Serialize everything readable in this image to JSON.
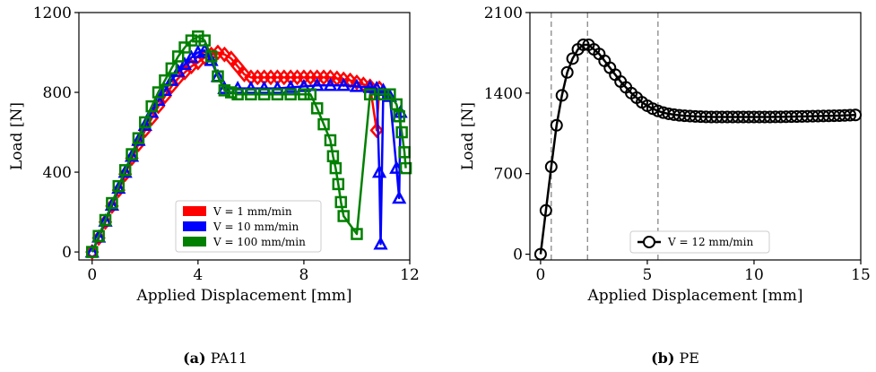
{
  "chart_data": [
    {
      "type": "line",
      "xlabel": "Applied Displacement  [mm]",
      "ylabel": "Load  [N]",
      "xlim": [
        -0.5,
        12
      ],
      "ylim": [
        -40,
        1200
      ],
      "xticks": [
        "0",
        "4",
        "8",
        "12"
      ],
      "yticks": [
        "0",
        "400",
        "800",
        "1200"
      ],
      "legend_position": "lower-right",
      "caption_label": "(a)",
      "caption_text": "PA11",
      "series": [
        {
          "name": "V = 1 mm/min",
          "color": "#ff0000",
          "marker": "diamond",
          "x": [
            0,
            0.25,
            0.5,
            0.75,
            1.0,
            1.25,
            1.5,
            1.75,
            2.0,
            2.25,
            2.5,
            2.75,
            3.0,
            3.25,
            3.5,
            3.75,
            4.0,
            4.25,
            4.5,
            4.75,
            5.0,
            5.25,
            5.5,
            5.75,
            6.0,
            6.25,
            6.5,
            6.75,
            7.0,
            7.25,
            7.5,
            7.75,
            8.0,
            8.25,
            8.5,
            8.75,
            9.0,
            9.25,
            9.5,
            9.75,
            10.0,
            10.25,
            10.5,
            10.75,
            10.85
          ],
          "y": [
            0,
            70,
            150,
            230,
            310,
            390,
            470,
            540,
            610,
            670,
            730,
            780,
            830,
            870,
            900,
            930,
            950,
            975,
            990,
            1000,
            990,
            970,
            930,
            890,
            875,
            875,
            875,
            875,
            875,
            875,
            875,
            875,
            875,
            875,
            875,
            875,
            875,
            870,
            865,
            860,
            850,
            840,
            830,
            610,
            820
          ]
        },
        {
          "name": "V = 10 mm/min",
          "color": "#0000ff",
          "marker": "triangle",
          "x": [
            0,
            0.25,
            0.5,
            0.75,
            1.0,
            1.25,
            1.5,
            1.75,
            2.0,
            2.25,
            2.5,
            2.75,
            3.0,
            3.25,
            3.5,
            3.75,
            4.0,
            4.25,
            4.5,
            4.75,
            5.0,
            5.5,
            6.0,
            6.5,
            7.0,
            7.5,
            8.0,
            8.5,
            9.0,
            9.5,
            10.0,
            10.5,
            10.75,
            10.85,
            10.9,
            11.0,
            11.25,
            11.5,
            11.6,
            11.65
          ],
          "y": [
            0,
            75,
            155,
            235,
            320,
            400,
            480,
            560,
            635,
            700,
            760,
            810,
            860,
            905,
            940,
            975,
            1000,
            1010,
            960,
            880,
            820,
            820,
            820,
            820,
            820,
            825,
            830,
            835,
            835,
            835,
            830,
            825,
            820,
            400,
            40,
            810,
            780,
            420,
            270,
            700
          ]
        },
        {
          "name": "V = 100 mm/min",
          "color": "#008000",
          "marker": "square",
          "x": [
            0,
            0.25,
            0.5,
            0.75,
            1.0,
            1.25,
            1.5,
            1.75,
            2.0,
            2.25,
            2.5,
            2.75,
            3.0,
            3.25,
            3.5,
            3.75,
            4.0,
            4.25,
            4.5,
            4.75,
            5.0,
            5.25,
            5.5,
            6.0,
            6.5,
            7.0,
            7.5,
            8.0,
            8.25,
            8.5,
            8.75,
            9.0,
            9.1,
            9.2,
            9.3,
            9.4,
            9.5,
            10.0,
            10.5,
            11.0,
            11.25,
            11.5,
            11.6,
            11.7,
            11.8,
            11.85
          ],
          "y": [
            0,
            80,
            160,
            245,
            330,
            410,
            490,
            570,
            650,
            730,
            800,
            860,
            920,
            980,
            1025,
            1060,
            1080,
            1060,
            980,
            880,
            810,
            800,
            790,
            790,
            790,
            790,
            790,
            790,
            790,
            720,
            640,
            560,
            480,
            420,
            340,
            250,
            180,
            90,
            790,
            790,
            790,
            740,
            680,
            600,
            500,
            420
          ]
        }
      ]
    },
    {
      "type": "line",
      "xlabel": "Applied Displacement  [mm]",
      "ylabel": "Load  [N]",
      "xlim": [
        -0.5,
        15
      ],
      "ylim": [
        -50,
        2100
      ],
      "xticks": [
        "0",
        "5",
        "10",
        "15"
      ],
      "yticks": [
        "0",
        "700",
        "1400",
        "2100"
      ],
      "vlines_x": [
        0.5,
        2.2,
        5.5
      ],
      "legend_position": "lower-center",
      "caption_label": "(b)",
      "caption_text": "PE",
      "series": [
        {
          "name": "V = 12 mm/min",
          "color": "#000000",
          "marker": "circle",
          "x": [
            0,
            0.25,
            0.5,
            0.75,
            1.0,
            1.25,
            1.5,
            1.75,
            2.0,
            2.25,
            2.5,
            2.75,
            3.0,
            3.25,
            3.5,
            3.75,
            4.0,
            4.25,
            4.5,
            4.75,
            5.0,
            5.25,
            5.5,
            5.75,
            6.0,
            6.25,
            6.5,
            6.75,
            7.0,
            7.25,
            7.5,
            7.75,
            8.0,
            8.25,
            8.5,
            8.75,
            9.0,
            9.25,
            9.5,
            9.75,
            10.0,
            10.25,
            10.5,
            10.75,
            11.0,
            11.25,
            11.5,
            11.75,
            12.0,
            12.25,
            12.5,
            12.75,
            13.0,
            13.25,
            13.5,
            13.75,
            14.0,
            14.25,
            14.5,
            14.75
          ],
          "y": [
            0,
            380,
            760,
            1120,
            1380,
            1580,
            1700,
            1780,
            1820,
            1820,
            1780,
            1740,
            1680,
            1620,
            1560,
            1500,
            1450,
            1400,
            1360,
            1320,
            1290,
            1265,
            1245,
            1230,
            1220,
            1213,
            1207,
            1203,
            1200,
            1197,
            1195,
            1193,
            1192,
            1192,
            1192,
            1192,
            1192,
            1192,
            1192,
            1192,
            1192,
            1192,
            1192,
            1192,
            1193,
            1193,
            1194,
            1195,
            1196,
            1197,
            1198,
            1199,
            1200,
            1201,
            1202,
            1203,
            1204,
            1206,
            1208,
            1210
          ]
        }
      ]
    }
  ]
}
